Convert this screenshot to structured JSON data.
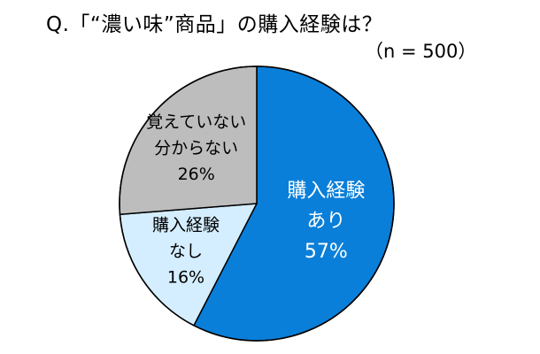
{
  "chart_data": {
    "type": "pie",
    "title": "Q.「“濃い味”商品」の購入経験は？",
    "subtitle": "（n = 500）",
    "slices": [
      {
        "label_lines": [
          "購入経験",
          "あり"
        ],
        "value": 57,
        "value_label": "57%",
        "color": "#0A7FD9"
      },
      {
        "label_lines": [
          "購入経験",
          "なし"
        ],
        "value": 16,
        "value_label": "16%",
        "color": "#D4EEFF"
      },
      {
        "label_lines": [
          "覚えていない",
          "分からない"
        ],
        "value": 26,
        "value_label": "26%",
        "color": "#BDBDBD"
      }
    ],
    "start_angle_deg": 0,
    "direction": "clockwise",
    "edge_color": "#000000"
  }
}
